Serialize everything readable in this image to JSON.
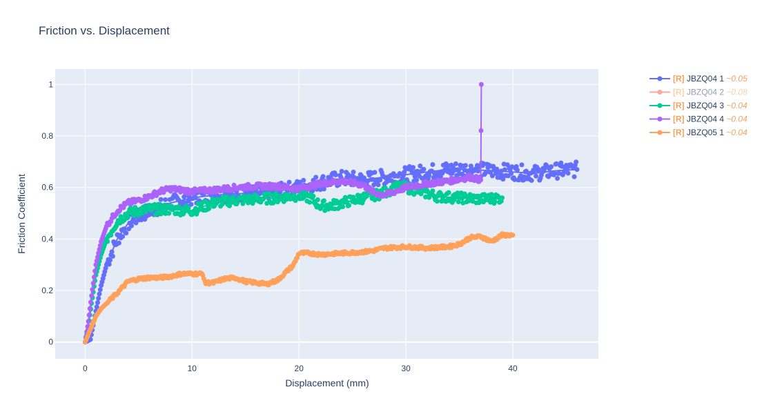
{
  "chart_data": {
    "type": "scatter",
    "title": "Friction vs. Displacement",
    "xlabel": "Displacement (mm)",
    "ylabel": "Friction Coefficient",
    "xlim": [
      -2.8,
      48.0
    ],
    "ylim": [
      -0.065,
      1.06
    ],
    "xticks": [
      0,
      10,
      20,
      30,
      40
    ],
    "yticks": [
      0,
      0.2,
      0.4,
      0.6,
      0.8,
      1
    ],
    "grid": true,
    "background": "#e5ecf6",
    "legend_position": "top-right",
    "series": [
      {
        "name": "JBZQ04 1",
        "tag": "[R]",
        "value": "~0.05",
        "color": "#636efa",
        "visible": true,
        "noise": 0.03,
        "points": [
          [
            0,
            0
          ],
          [
            0.5,
            0.01
          ],
          [
            1,
            0.12
          ],
          [
            1.5,
            0.22
          ],
          [
            2,
            0.3
          ],
          [
            3,
            0.4
          ],
          [
            4,
            0.46
          ],
          [
            5,
            0.49
          ],
          [
            6,
            0.51
          ],
          [
            8,
            0.54
          ],
          [
            10,
            0.56
          ],
          [
            12,
            0.57
          ],
          [
            14,
            0.575
          ],
          [
            16,
            0.58
          ],
          [
            18,
            0.585
          ],
          [
            20,
            0.6
          ],
          [
            22,
            0.62
          ],
          [
            24,
            0.635
          ],
          [
            26,
            0.63
          ],
          [
            28,
            0.64
          ],
          [
            30,
            0.65
          ],
          [
            32,
            0.66
          ],
          [
            34,
            0.67
          ],
          [
            36,
            0.67
          ],
          [
            38,
            0.665
          ],
          [
            40,
            0.66
          ],
          [
            42,
            0.655
          ],
          [
            44,
            0.665
          ],
          [
            46,
            0.67
          ]
        ]
      },
      {
        "name": "JBZQ04 2",
        "tag": "[R]",
        "value": "~0.08",
        "color": "#ef553b",
        "visible": false,
        "noise": 0,
        "points": []
      },
      {
        "name": "JBZQ04 3",
        "tag": "[R]",
        "value": "~0.04",
        "color": "#00cc96",
        "visible": true,
        "noise": 0.02,
        "points": [
          [
            0,
            0
          ],
          [
            0.3,
            0.06
          ],
          [
            0.6,
            0.15
          ],
          [
            1,
            0.26
          ],
          [
            1.5,
            0.34
          ],
          [
            2,
            0.4
          ],
          [
            3,
            0.47
          ],
          [
            4,
            0.5
          ],
          [
            5,
            0.51
          ],
          [
            6,
            0.515
          ],
          [
            8,
            0.515
          ],
          [
            10,
            0.51
          ],
          [
            12,
            0.54
          ],
          [
            14,
            0.55
          ],
          [
            16,
            0.555
          ],
          [
            18,
            0.56
          ],
          [
            20,
            0.57
          ],
          [
            21,
            0.56
          ],
          [
            22,
            0.53
          ],
          [
            23,
            0.53
          ],
          [
            24,
            0.54
          ],
          [
            25,
            0.55
          ],
          [
            26,
            0.56
          ],
          [
            28,
            0.58
          ],
          [
            29,
            0.6
          ],
          [
            30,
            0.6
          ],
          [
            31,
            0.59
          ],
          [
            33,
            0.565
          ],
          [
            35,
            0.56
          ],
          [
            37,
            0.555
          ],
          [
            39,
            0.56
          ]
        ]
      },
      {
        "name": "JBZQ04 4",
        "tag": "[R]",
        "value": "~0.04",
        "color": "#ab63fa",
        "visible": true,
        "noise": 0.01,
        "points": [
          [
            0,
            0
          ],
          [
            0.3,
            0.08
          ],
          [
            0.6,
            0.18
          ],
          [
            1,
            0.3
          ],
          [
            1.5,
            0.39
          ],
          [
            2,
            0.45
          ],
          [
            3,
            0.51
          ],
          [
            4,
            0.54
          ],
          [
            5,
            0.55
          ],
          [
            6,
            0.565
          ],
          [
            7,
            0.585
          ],
          [
            8,
            0.595
          ],
          [
            10,
            0.585
          ],
          [
            12,
            0.59
          ],
          [
            14,
            0.6
          ],
          [
            16,
            0.605
          ],
          [
            18,
            0.605
          ],
          [
            20,
            0.595
          ],
          [
            22,
            0.615
          ],
          [
            24,
            0.625
          ],
          [
            26,
            0.61
          ],
          [
            27,
            0.58
          ],
          [
            28,
            0.57
          ],
          [
            29,
            0.585
          ],
          [
            30,
            0.6
          ],
          [
            32,
            0.615
          ],
          [
            34,
            0.625
          ],
          [
            36,
            0.64
          ],
          [
            37,
            0.63
          ],
          [
            37.05,
            1.0
          ]
        ]
      },
      {
        "name": "JBZQ05 1",
        "tag": "[R]",
        "value": "~0.04",
        "color": "#ffa15a",
        "visible": true,
        "noise": 0.006,
        "points": [
          [
            0,
            0
          ],
          [
            0.5,
            0.05
          ],
          [
            1,
            0.1
          ],
          [
            1.5,
            0.13
          ],
          [
            2,
            0.15
          ],
          [
            3,
            0.19
          ],
          [
            4,
            0.235
          ],
          [
            5,
            0.245
          ],
          [
            6,
            0.25
          ],
          [
            7,
            0.25
          ],
          [
            8,
            0.255
          ],
          [
            9,
            0.265
          ],
          [
            10,
            0.265
          ],
          [
            11,
            0.265
          ],
          [
            11.2,
            0.23
          ],
          [
            12,
            0.23
          ],
          [
            13,
            0.245
          ],
          [
            14,
            0.25
          ],
          [
            15,
            0.235
          ],
          [
            16,
            0.23
          ],
          [
            17,
            0.225
          ],
          [
            18,
            0.24
          ],
          [
            19,
            0.28
          ],
          [
            19.5,
            0.3
          ],
          [
            20,
            0.345
          ],
          [
            21,
            0.345
          ],
          [
            22,
            0.34
          ],
          [
            24,
            0.345
          ],
          [
            26,
            0.35
          ],
          [
            27,
            0.355
          ],
          [
            28,
            0.365
          ],
          [
            30,
            0.37
          ],
          [
            32,
            0.365
          ],
          [
            34,
            0.37
          ],
          [
            35,
            0.38
          ],
          [
            36,
            0.405
          ],
          [
            37,
            0.41
          ],
          [
            38,
            0.39
          ],
          [
            39,
            0.415
          ],
          [
            40,
            0.415
          ]
        ]
      }
    ]
  }
}
